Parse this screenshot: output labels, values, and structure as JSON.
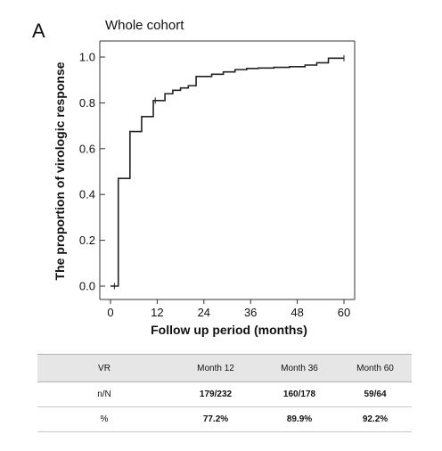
{
  "panel_letter": "A",
  "chart_data": {
    "type": "line",
    "title": "Whole cohort",
    "xlabel": "Follow up period (months)",
    "ylabel": "The proportion of virologic response",
    "xlim": [
      0,
      60
    ],
    "ylim": [
      0,
      1.0
    ],
    "x_ticks": [
      0,
      12,
      24,
      36,
      48,
      60
    ],
    "y_ticks": [
      "0.0",
      "0.2",
      "0.4",
      "0.6",
      "0.8",
      "1.0"
    ],
    "grid": false,
    "legend": "none",
    "line_color": "#222222",
    "series": [
      {
        "steps": [
          [
            0,
            0.0
          ],
          [
            2,
            0.47
          ],
          [
            5,
            0.675
          ],
          [
            8,
            0.74
          ],
          [
            11,
            0.81
          ],
          [
            14,
            0.84
          ],
          [
            16,
            0.855
          ],
          [
            18,
            0.865
          ],
          [
            20,
            0.875
          ],
          [
            22,
            0.915
          ],
          [
            26,
            0.925
          ],
          [
            29,
            0.935
          ],
          [
            32,
            0.945
          ],
          [
            35,
            0.95
          ],
          [
            38,
            0.952
          ],
          [
            42,
            0.955
          ],
          [
            46,
            0.958
          ],
          [
            50,
            0.965
          ],
          [
            53,
            0.975
          ],
          [
            56,
            0.995
          ],
          [
            60,
            0.995
          ]
        ],
        "censor_marks": [
          [
            1,
            0.0
          ],
          [
            11.5,
            0.81
          ],
          [
            60,
            0.995
          ]
        ]
      }
    ]
  },
  "table": {
    "headers": [
      "VR",
      "Month 12",
      "Month 36",
      "Month 60"
    ],
    "rows": [
      [
        "n/N",
        "179/232",
        "160/178",
        "59/64"
      ],
      [
        "%",
        "77.2%",
        "89.9%",
        "92.2%"
      ]
    ]
  }
}
